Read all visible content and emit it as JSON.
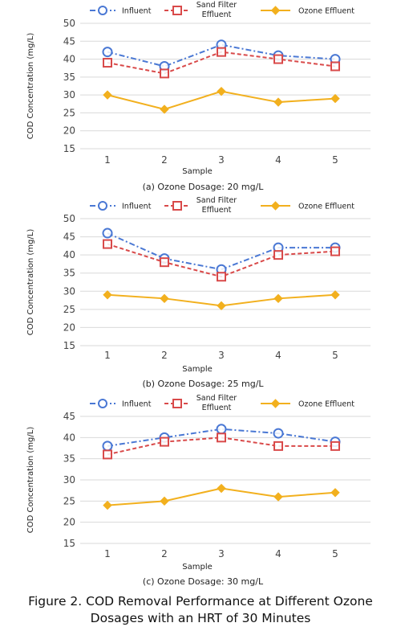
{
  "figure": {
    "caption_line1": "Figure 2. COD Removal Performance at Different Ozone",
    "caption_line2": "Dosages with an HRT of 30 Minutes"
  },
  "legend": {
    "influent": "Influent",
    "sand_line1": "Sand Filter",
    "sand_line2": "Effluent",
    "ozone": "Ozone Effluent"
  },
  "colors": {
    "influent": "#4a78d4",
    "sand": "#d94a4a",
    "ozone": "#f2b01e",
    "grid": "#d9d9d9"
  },
  "chart_data": [
    {
      "type": "line",
      "caption": "(a) Ozone Dosage: 20 mg/L",
      "xlabel": "Sample",
      "ylabel": "COD Concentration (mg/L)",
      "x": [
        1,
        2,
        3,
        4,
        5
      ],
      "ylim": [
        15,
        50
      ],
      "yticks": [
        15,
        20,
        25,
        30,
        35,
        40,
        45,
        50
      ],
      "series": [
        {
          "name": "Influent",
          "values": [
            42,
            38,
            44,
            41,
            40
          ]
        },
        {
          "name": "Sand Filter Effluent",
          "values": [
            39,
            36,
            42,
            40,
            38
          ]
        },
        {
          "name": "Ozone Effluent",
          "values": [
            30,
            26,
            31,
            28,
            29
          ]
        }
      ]
    },
    {
      "type": "line",
      "caption": "(b) Ozone Dosage: 25 mg/L",
      "xlabel": "Sample",
      "ylabel": "COD Concentration (mg/L)",
      "x": [
        1,
        2,
        3,
        4,
        5
      ],
      "ylim": [
        15,
        50
      ],
      "yticks": [
        15,
        20,
        25,
        30,
        35,
        40,
        45,
        50
      ],
      "series": [
        {
          "name": "Influent",
          "values": [
            46,
            39,
            36,
            42,
            42
          ]
        },
        {
          "name": "Sand Filter Effluent",
          "values": [
            43,
            38,
            34,
            40,
            41
          ]
        },
        {
          "name": "Ozone Effluent",
          "values": [
            29,
            28,
            26,
            28,
            29
          ]
        }
      ]
    },
    {
      "type": "line",
      "caption": "(c) Ozone Dosage: 30 mg/L",
      "xlabel": "Sample",
      "ylabel": "COD Concentration (mg/L)",
      "x": [
        1,
        2,
        3,
        4,
        5
      ],
      "ylim": [
        15,
        45
      ],
      "yticks": [
        15,
        20,
        25,
        30,
        35,
        40,
        45
      ],
      "series": [
        {
          "name": "Influent",
          "values": [
            38,
            40,
            42,
            41,
            39
          ]
        },
        {
          "name": "Sand Filter Effluent",
          "values": [
            36,
            39,
            40,
            38,
            38
          ]
        },
        {
          "name": "Ozone Effluent",
          "values": [
            24,
            25,
            28,
            26,
            27
          ]
        }
      ]
    }
  ]
}
